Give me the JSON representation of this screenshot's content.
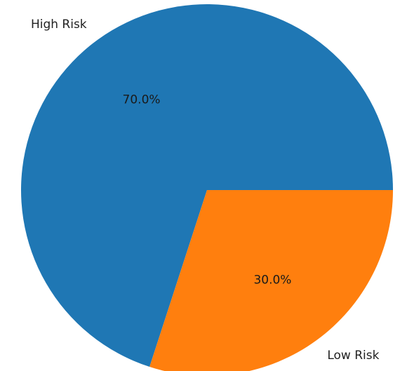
{
  "chart_data": {
    "type": "pie",
    "slices": [
      {
        "label": "High Risk",
        "value": 70.0,
        "pct_label": "70.0%",
        "color": "#1f77b4"
      },
      {
        "label": "Low Risk",
        "value": 30.0,
        "pct_label": "30.0%",
        "color": "#ff7f0e"
      }
    ],
    "start_angle_deg": 0,
    "direction": "counterclockwise"
  }
}
